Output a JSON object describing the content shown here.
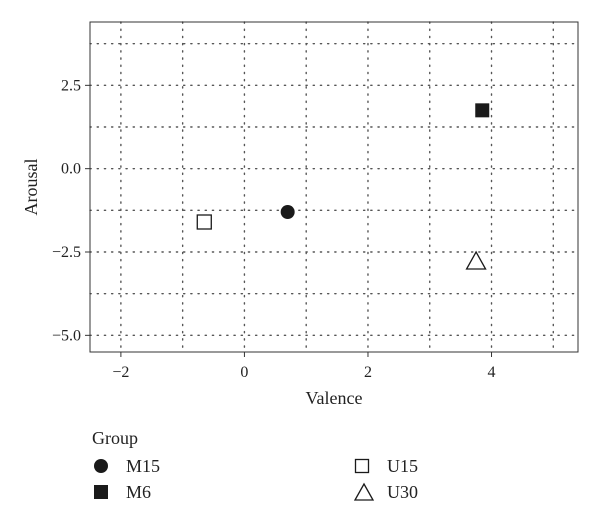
{
  "chart_data": {
    "type": "scatter",
    "xlabel": "Valence",
    "ylabel": "Arousal",
    "xlim": [
      -2.5,
      5.4
    ],
    "ylim": [
      -5.5,
      4.4
    ],
    "xticks": [
      -2,
      0,
      2,
      4
    ],
    "xtick_labels": [
      "−2",
      "0",
      "2",
      "4"
    ],
    "yticks": [
      -5.0,
      -2.5,
      0.0,
      2.5
    ],
    "ytick_labels": [
      "−5.0",
      "−2.5",
      "0.0",
      "2.5"
    ],
    "grid": true,
    "legend_position": "bottom",
    "legend_title": "Group",
    "series": [
      {
        "name": "M15",
        "marker": "filled-circle",
        "color": "#1a1a1a",
        "points": [
          {
            "x": 0.7,
            "y": -1.3
          }
        ]
      },
      {
        "name": "M6",
        "marker": "filled-square",
        "color": "#1a1a1a",
        "points": [
          {
            "x": 3.85,
            "y": 1.75
          }
        ]
      },
      {
        "name": "U15",
        "marker": "open-square",
        "color": "#1a1a1a",
        "points": [
          {
            "x": -0.65,
            "y": -1.6
          }
        ]
      },
      {
        "name": "U30",
        "marker": "open-triangle",
        "color": "#1a1a1a",
        "points": [
          {
            "x": 3.75,
            "y": -2.8
          }
        ]
      }
    ]
  }
}
